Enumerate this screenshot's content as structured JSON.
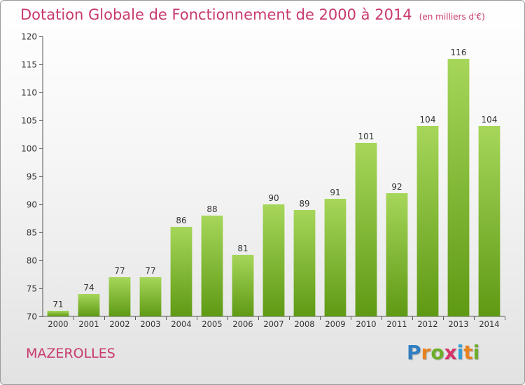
{
  "header": {
    "title": "Dotation Globale de Fonctionnement de 2000 à 2014",
    "subtitle": "(en milliers d'€)"
  },
  "footer": {
    "town": "MAZEROLLES",
    "logo_letters": [
      "P",
      "r",
      "o",
      "x",
      "i",
      "t",
      "i"
    ],
    "logo_colors": [
      "#2f7fc2",
      "#e8821e",
      "#6cae2a",
      "#d6336c",
      "#2f9fd6",
      "#e8821e",
      "#6cae2a"
    ]
  },
  "colors": {
    "title": "#c8396f",
    "bar_light": "#a6d65a",
    "bar_dark": "#5f9a14",
    "axis": "#555555"
  },
  "chart_data": {
    "type": "bar",
    "categories": [
      "2000",
      "2001",
      "2002",
      "2003",
      "2004",
      "2005",
      "2006",
      "2007",
      "2008",
      "2009",
      "2010",
      "2011",
      "2012",
      "2013",
      "2014"
    ],
    "values": [
      71,
      74,
      77,
      77,
      86,
      88,
      81,
      90,
      89,
      91,
      101,
      92,
      104,
      116,
      104
    ],
    "ylim": [
      70,
      120
    ],
    "yticks": [
      70,
      75,
      80,
      85,
      90,
      95,
      100,
      105,
      110,
      115,
      120
    ],
    "grid": false
  }
}
